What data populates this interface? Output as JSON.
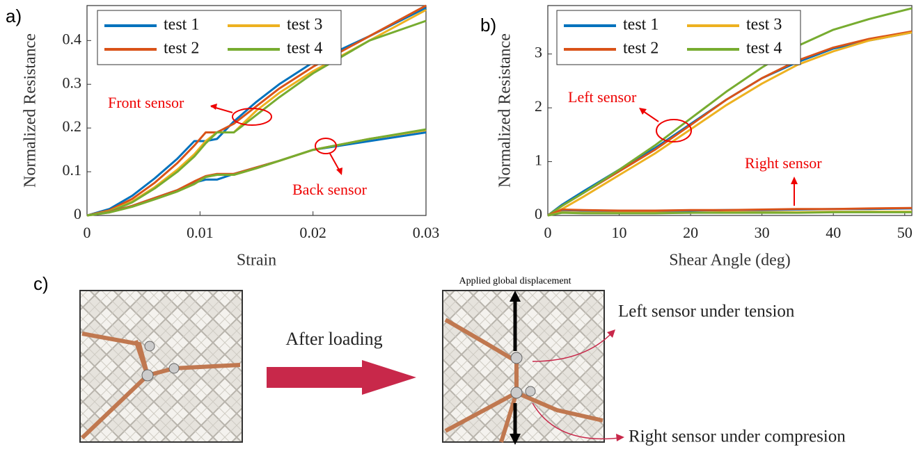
{
  "chart_data": [
    {
      "type": "line",
      "panel": "a)",
      "xlabel": "Strain",
      "ylabel": "Normalized Resistance",
      "xlim": [
        0,
        0.03
      ],
      "ylim": [
        0,
        0.48
      ],
      "xticks": [
        0,
        0.01,
        0.02,
        0.03
      ],
      "yticks": [
        0,
        0.1,
        0.2,
        0.3,
        0.4
      ],
      "grid": false,
      "legend": [
        {
          "name": "test 1",
          "color": "#0072BD"
        },
        {
          "name": "test 2",
          "color": "#D95319"
        },
        {
          "name": "test 3",
          "color": "#EDB120"
        },
        {
          "name": "test 4",
          "color": "#77AC30"
        }
      ],
      "x": [
        0,
        0.002,
        0.004,
        0.006,
        0.008,
        0.0095,
        0.0105,
        0.0115,
        0.013,
        0.015,
        0.017,
        0.02,
        0.025,
        0.03
      ],
      "groups": [
        {
          "label": "Front sensor",
          "series": [
            {
              "values": [
                0,
                0.015,
                0.045,
                0.085,
                0.13,
                0.17,
                0.17,
                0.175,
                0.215,
                0.26,
                0.3,
                0.35,
                0.41,
                0.475
              ]
            },
            {
              "values": [
                0,
                0.012,
                0.038,
                0.075,
                0.12,
                0.16,
                0.19,
                0.19,
                0.21,
                0.25,
                0.29,
                0.34,
                0.41,
                0.48
              ]
            },
            {
              "values": [
                0,
                0.01,
                0.032,
                0.065,
                0.105,
                0.14,
                0.17,
                0.19,
                0.19,
                0.24,
                0.28,
                0.33,
                0.4,
                0.47
              ]
            },
            {
              "values": [
                0,
                0.009,
                0.03,
                0.062,
                0.1,
                0.135,
                0.165,
                0.19,
                0.19,
                0.23,
                0.27,
                0.325,
                0.4,
                0.445
              ]
            }
          ]
        },
        {
          "label": "Back sensor",
          "series": [
            {
              "values": [
                0,
                0.008,
                0.022,
                0.04,
                0.058,
                0.075,
                0.082,
                0.082,
                0.095,
                0.11,
                0.125,
                0.15,
                0.17,
                0.19
              ]
            },
            {
              "values": [
                0,
                0.008,
                0.022,
                0.04,
                0.058,
                0.078,
                0.09,
                0.095,
                0.095,
                0.11,
                0.125,
                0.15,
                0.175,
                0.195
              ]
            },
            {
              "values": [
                0,
                0.007,
                0.02,
                0.037,
                0.055,
                0.072,
                0.088,
                0.093,
                0.093,
                0.108,
                0.125,
                0.15,
                0.175,
                0.195
              ]
            },
            {
              "values": [
                0,
                0.007,
                0.02,
                0.037,
                0.055,
                0.072,
                0.088,
                0.093,
                0.093,
                0.108,
                0.125,
                0.15,
                0.175,
                0.197
              ]
            }
          ]
        }
      ]
    },
    {
      "type": "line",
      "panel": "b)",
      "xlabel": "Shear Angle (deg)",
      "ylabel": "Normalized Resistance",
      "xlim": [
        0,
        51
      ],
      "ylim": [
        0,
        3.9
      ],
      "xticks": [
        0,
        10,
        20,
        30,
        40,
        50
      ],
      "yticks": [
        0,
        1,
        2,
        3
      ],
      "grid": false,
      "legend": [
        {
          "name": "test 1",
          "color": "#0072BD"
        },
        {
          "name": "test 2",
          "color": "#D95319"
        },
        {
          "name": "test 3",
          "color": "#EDB120"
        },
        {
          "name": "test 4",
          "color": "#77AC30"
        }
      ],
      "x": [
        0,
        2,
        5,
        10,
        15,
        20,
        25,
        30,
        35,
        40,
        45,
        51
      ],
      "groups": [
        {
          "label": "Left sensor",
          "series": [
            {
              "values": [
                0,
                0.2,
                0.45,
                0.85,
                1.25,
                1.7,
                2.15,
                2.55,
                2.85,
                3.1,
                3.25,
                3.4
              ]
            },
            {
              "values": [
                0,
                0.18,
                0.42,
                0.82,
                1.22,
                1.68,
                2.15,
                2.55,
                2.88,
                3.12,
                3.28,
                3.42
              ]
            },
            {
              "values": [
                0,
                0.12,
                0.35,
                0.75,
                1.15,
                1.6,
                2.05,
                2.45,
                2.8,
                3.05,
                3.25,
                3.4
              ]
            },
            {
              "values": [
                0,
                0.18,
                0.42,
                0.85,
                1.3,
                1.8,
                2.3,
                2.75,
                3.15,
                3.45,
                3.65,
                3.85
              ]
            }
          ]
        },
        {
          "label": "Right sensor",
          "series": [
            {
              "values": [
                0,
                0.1,
                0.09,
                0.08,
                0.08,
                0.09,
                0.1,
                0.1,
                0.11,
                0.12,
                0.12,
                0.13
              ]
            },
            {
              "values": [
                0,
                0.11,
                0.1,
                0.09,
                0.09,
                0.1,
                0.1,
                0.11,
                0.12,
                0.12,
                0.13,
                0.14
              ]
            },
            {
              "values": [
                0,
                0.06,
                0.05,
                0.05,
                0.05,
                0.05,
                0.06,
                0.06,
                0.06,
                0.07,
                0.07,
                0.07
              ]
            },
            {
              "values": [
                0,
                0.05,
                0.04,
                0.04,
                0.04,
                0.05,
                0.05,
                0.05,
                0.05,
                0.06,
                0.06,
                0.06
              ]
            }
          ]
        }
      ]
    }
  ],
  "photos": {
    "panel": "c)",
    "arrow_label": "After loading",
    "displacement_label": "Applied global displacement",
    "left_note": "Left sensor under tension",
    "right_note": "Right sensor under compresion"
  }
}
